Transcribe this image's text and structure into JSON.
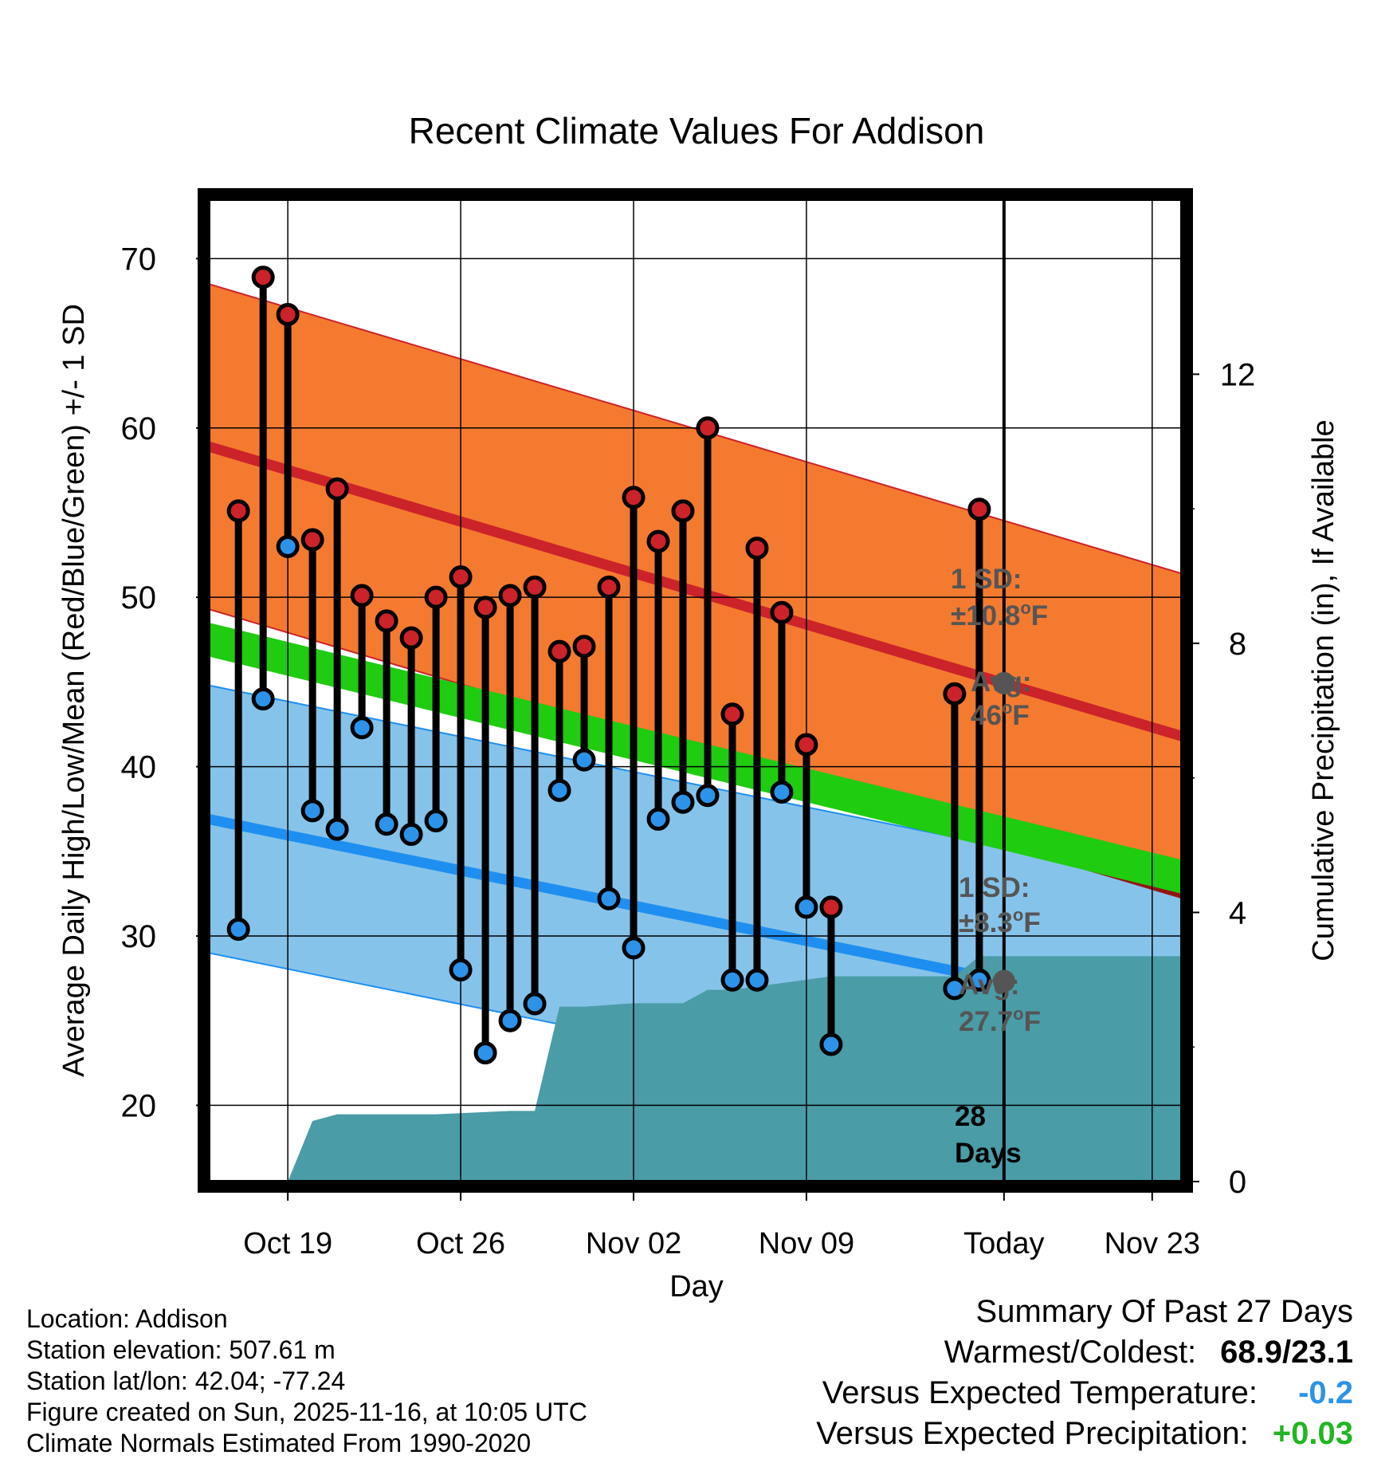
{
  "chart_data": {
    "type": "climate-range",
    "title": "Recent Climate Values For Addison",
    "xlabel": "Day",
    "ylabel": "Average Daily High/Low/Mean (Red/Blue/Green) +/- 1 SD",
    "y2label": "Cumulative Precipitation (in), If Available",
    "ylim": [
      15.5,
      73.5
    ],
    "y2lim": [
      0,
      14.6
    ],
    "xlim": [
      15.8,
      55.2
    ],
    "today_day": 48,
    "yticks": [
      20,
      30,
      40,
      50,
      60,
      70
    ],
    "y2ticks": [
      0,
      4,
      8,
      12
    ],
    "xticks": [
      {
        "day": 19,
        "label": "Oct 19"
      },
      {
        "day": 26,
        "label": "Oct 26"
      },
      {
        "day": 33,
        "label": "Nov 02"
      },
      {
        "day": 40,
        "label": "Nov 09"
      },
      {
        "day": 48,
        "label": "Today"
      },
      {
        "day": 54,
        "label": "Nov 23"
      }
    ],
    "normals": {
      "high_avg": [
        58.9,
        41.8
      ],
      "high_sd": 9.6,
      "low_avg": [
        36.9,
        25.2
      ],
      "low_sd": 7.9,
      "mean_avg": [
        47.5,
        33.5
      ],
      "mean_width": 1.0,
      "at_today": {
        "high_avg": "46",
        "high_sd": "10.8",
        "low_avg": "27.7",
        "low_sd": "8.3"
      }
    },
    "series": [
      {
        "name": "High",
        "color": "#cc2229",
        "days": [
          17,
          18,
          19,
          20,
          21,
          22,
          23,
          24,
          25,
          26,
          27,
          28,
          29,
          30,
          31,
          32,
          33,
          34,
          35,
          36,
          37,
          38,
          39,
          40,
          41,
          46,
          47
        ],
        "values": [
          55.1,
          68.9,
          66.7,
          53.4,
          56.4,
          50.1,
          48.6,
          47.6,
          50.0,
          51.2,
          49.4,
          50.1,
          50.6,
          46.8,
          47.1,
          50.6,
          55.9,
          53.3,
          55.1,
          60.0,
          43.1,
          52.9,
          49.1,
          41.3,
          31.7,
          44.3,
          55.2
        ]
      },
      {
        "name": "Low",
        "color": "#2c93e8",
        "days": [
          17,
          18,
          19,
          20,
          21,
          22,
          23,
          24,
          25,
          26,
          27,
          28,
          29,
          30,
          31,
          32,
          33,
          34,
          35,
          36,
          37,
          38,
          39,
          40,
          41,
          46,
          47
        ],
        "values": [
          30.4,
          44.0,
          53.0,
          37.4,
          36.3,
          42.3,
          36.6,
          36.0,
          36.8,
          28.0,
          23.1,
          25.0,
          26.0,
          38.6,
          40.4,
          32.2,
          29.3,
          36.9,
          37.9,
          38.3,
          27.4,
          27.4,
          38.5,
          31.7,
          23.6,
          26.9,
          27.4
        ]
      }
    ],
    "precip": {
      "days": [
        18,
        19,
        20,
        21,
        25,
        28,
        29,
        30,
        31,
        33,
        35,
        36,
        37,
        38,
        40,
        41,
        46,
        47,
        55.2
      ],
      "values": [
        0,
        0,
        0.9,
        1.0,
        1.0,
        1.05,
        1.05,
        2.6,
        2.6,
        2.65,
        2.65,
        2.85,
        2.85,
        2.9,
        3.0,
        3.05,
        3.05,
        3.35,
        3.35
      ]
    },
    "annotations": {
      "sd_label": "1 SD:",
      "avg_label": "Avg:",
      "days_count": "28",
      "days_word": "Days"
    }
  },
  "footer": {
    "location": "Location: Addison",
    "elevation": "Station elevation: 507.61 m",
    "latlon": "Station lat/lon: 42.04; -77.24",
    "created": "Figure created on Sun, 2025-11-16, at 10:05 UTC",
    "normals": "Climate Normals Estimated From 1990-2020"
  },
  "summary": {
    "heading": "Summary Of Past 27 Days",
    "warm_cold_label": "Warmest/Coldest:",
    "warm_cold_value": "68.9/23.1",
    "temp_label": "Versus Expected Temperature:",
    "temp_value": "-0.2",
    "temp_color": "#2c93e8",
    "precip_label": "Versus Expected Precipitation:",
    "precip_value": "+0.03",
    "precip_color": "#22b522"
  },
  "colors": {
    "high_band": "#f47a30",
    "high_avg": "#cc2229",
    "low_band": "#86c3ea",
    "low_avg": "#1e8ff0",
    "mean": "#1fcc10",
    "overlap": "#941414",
    "precip": "#4a9ca7",
    "annotation": "#555555"
  }
}
